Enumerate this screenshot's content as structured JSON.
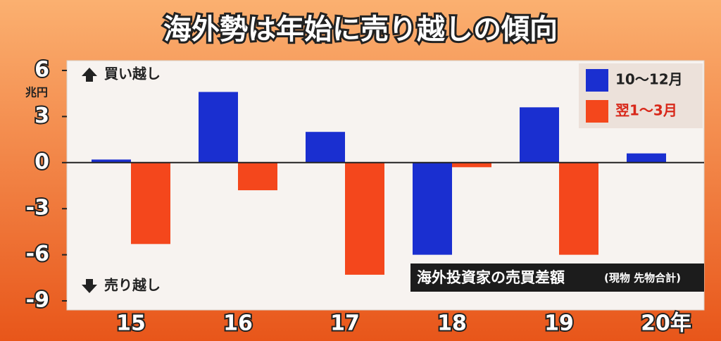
{
  "chart_data": {
    "type": "bar",
    "title": "海外勢は年始に売り越しの傾向",
    "y_unit": "兆円",
    "annotations": {
      "up": "買い越し",
      "down": "売り越し",
      "note": "海外投資家の売買差額",
      "note_sub": "(現物 先物合計)"
    },
    "categories": [
      "15",
      "16",
      "17",
      "18",
      "19",
      "20年"
    ],
    "series": [
      {
        "name": "10〜12月",
        "color": "#1a2fd0",
        "values": [
          0.2,
          4.6,
          2.0,
          -6.0,
          3.6,
          0.6
        ]
      },
      {
        "name": "翌1〜3月",
        "color": "#f4471c",
        "values": [
          -5.3,
          -1.8,
          -7.3,
          -0.3,
          -6.0,
          null
        ]
      }
    ],
    "ylim": [
      -9,
      6
    ],
    "yticks": [
      6,
      3,
      0,
      -3,
      -6,
      -9
    ],
    "grid": false
  }
}
